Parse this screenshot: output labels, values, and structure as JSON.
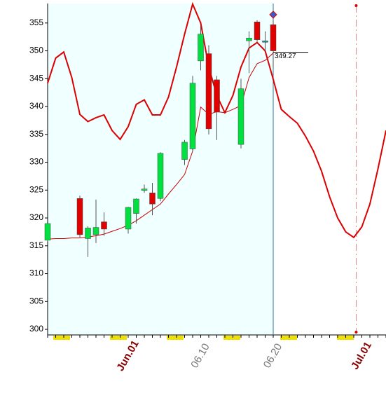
{
  "chart_data": {
    "type": "candlestick",
    "categories": [
      null,
      null,
      null,
      null,
      null,
      null,
      null,
      null,
      null,
      null,
      "Jun.01",
      null,
      null,
      null,
      null,
      null,
      null,
      null,
      null,
      "06.10",
      null,
      null,
      null,
      null,
      null,
      null,
      null,
      null,
      "06.20",
      null,
      null,
      null,
      null,
      null,
      null,
      null,
      null,
      null,
      null,
      "Jul.01",
      null,
      null,
      null
    ],
    "open": [
      316,
      null,
      null,
      null,
      323.5,
      316.3,
      317,
      319.3,
      null,
      null,
      318,
      320.8,
      325,
      324.5,
      323.5,
      null,
      null,
      330.5,
      332.4,
      348.2,
      349.5,
      344.8,
      null,
      null,
      333.2,
      351.8,
      355.2,
      351.8,
      354.7,
      null,
      null,
      null,
      null,
      null,
      null,
      null,
      null,
      null,
      null,
      null,
      null,
      null,
      null
    ],
    "high": [
      319,
      null,
      null,
      null,
      324,
      318.5,
      323.3,
      321,
      null,
      null,
      322,
      323.5,
      326,
      326.3,
      331.8,
      null,
      null,
      334,
      345.5,
      354.5,
      351,
      345.5,
      null,
      null,
      345,
      353.5,
      355.5,
      353.5,
      356.5,
      null,
      null,
      null,
      null,
      null,
      null,
      null,
      null,
      null,
      null,
      null,
      null,
      null,
      null
    ],
    "low": [
      315.8,
      null,
      null,
      null,
      316.5,
      313,
      315.5,
      316.8,
      null,
      null,
      317.2,
      319,
      324.5,
      320.5,
      323,
      null,
      null,
      329.5,
      332,
      346.5,
      335,
      334,
      null,
      null,
      332.5,
      346,
      351.5,
      350,
      347,
      null,
      null,
      null,
      null,
      null,
      null,
      null,
      null,
      null,
      null,
      null,
      null,
      null,
      null
    ],
    "close": [
      319,
      null,
      null,
      null,
      317,
      318.2,
      318.3,
      318,
      null,
      null,
      321.9,
      323.4,
      325.2,
      322.5,
      331.6,
      null,
      null,
      333.6,
      344.2,
      353,
      336,
      339,
      null,
      null,
      343.2,
      352.3,
      352,
      351.8,
      350,
      null,
      null,
      null,
      null,
      null,
      null,
      null,
      null,
      null,
      null,
      null,
      null,
      null,
      null
    ],
    "series": [
      {
        "color": "#cc0000",
        "values": [
          316.2,
          316.3,
          316.3,
          316.4,
          316.4,
          316.6,
          316.8,
          317.1,
          317.6,
          318.1,
          318.7,
          319.5,
          320.5,
          321.5,
          322.5,
          324.3,
          326,
          327.8,
          332,
          339.9,
          338.6,
          339.1,
          338.9,
          339.5,
          340.2,
          345.2,
          347.7,
          348.3,
          349.6,
          null,
          null,
          null,
          null,
          null,
          null,
          null,
          null,
          null,
          null,
          null,
          null,
          null,
          null
        ]
      },
      {
        "color": "#dd0000",
        "values": [
          344.2,
          348.7,
          349.8,
          345.2,
          338.6,
          337.3,
          338,
          338.5,
          335.7,
          334.1,
          336.4,
          340.4,
          341.2,
          338.5,
          338.5,
          341.7,
          347.1,
          353,
          358.4,
          355,
          347.1,
          342,
          338.9,
          342,
          347.1,
          350.5,
          351.5,
          350,
          344.9,
          339.5,
          338.2,
          337,
          334.7,
          332,
          328.4,
          323.8,
          320,
          317.5,
          316.5,
          318.4,
          322.5,
          328.8,
          335.7
        ]
      }
    ],
    "annotation": "349.27",
    "ylim": [
      299,
      358.5
    ],
    "yticks": [
      300,
      305,
      310,
      315,
      320,
      325,
      330,
      335,
      340,
      345,
      350,
      355
    ],
    "up_color": "#00e040",
    "down_color": "#e00000",
    "shade_color": "#f0ffff"
  }
}
